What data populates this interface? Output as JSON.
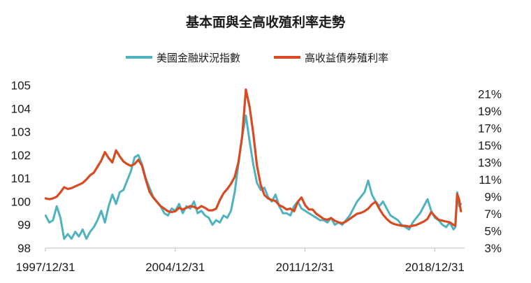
{
  "chart_data": {
    "type": "line",
    "title": "基本面與全高收殖利率走勢",
    "legend_placement": "top-center",
    "grid": false,
    "x_ticks": [
      "1997/12/31",
      "2004/12/31",
      "2011/12/31",
      "2018/12/31"
    ],
    "x_range": [
      1997.99,
      2020.6
    ],
    "y_left": {
      "min": 98,
      "max": 105,
      "ticks": [
        98,
        99,
        100,
        101,
        102,
        103,
        104,
        105
      ]
    },
    "y_right": {
      "min": 3,
      "max": 22,
      "ticks": [
        "3%",
        "5%",
        "7%",
        "9%",
        "11%",
        "13%",
        "15%",
        "17%",
        "19%",
        "21%"
      ]
    },
    "series": [
      {
        "name": "美國金融狀況指數",
        "color": "#4fb3bf",
        "axis": "left",
        "points": [
          [
            1998.0,
            99.4
          ],
          [
            1998.2,
            99.1
          ],
          [
            1998.4,
            99.2
          ],
          [
            1998.6,
            99.8
          ],
          [
            1998.8,
            99.3
          ],
          [
            1999.0,
            98.4
          ],
          [
            1999.2,
            98.6
          ],
          [
            1999.4,
            98.4
          ],
          [
            1999.6,
            98.7
          ],
          [
            1999.8,
            98.5
          ],
          [
            2000.0,
            98.8
          ],
          [
            2000.2,
            98.4
          ],
          [
            2000.4,
            98.7
          ],
          [
            2000.6,
            98.9
          ],
          [
            2000.8,
            99.2
          ],
          [
            2001.0,
            99.6
          ],
          [
            2001.2,
            99.1
          ],
          [
            2001.4,
            99.8
          ],
          [
            2001.6,
            100.3
          ],
          [
            2001.8,
            99.9
          ],
          [
            2002.0,
            100.4
          ],
          [
            2002.2,
            100.5
          ],
          [
            2002.4,
            100.9
          ],
          [
            2002.6,
            101.3
          ],
          [
            2002.8,
            101.9
          ],
          [
            2003.0,
            102.0
          ],
          [
            2003.2,
            101.6
          ],
          [
            2003.4,
            101.0
          ],
          [
            2003.6,
            100.6
          ],
          [
            2003.8,
            100.2
          ],
          [
            2004.0,
            100.0
          ],
          [
            2004.2,
            99.8
          ],
          [
            2004.4,
            99.5
          ],
          [
            2004.6,
            99.4
          ],
          [
            2004.8,
            99.7
          ],
          [
            2005.0,
            99.6
          ],
          [
            2005.2,
            99.9
          ],
          [
            2005.4,
            99.5
          ],
          [
            2005.6,
            99.8
          ],
          [
            2005.8,
            99.7
          ],
          [
            2006.0,
            100.0
          ],
          [
            2006.2,
            99.5
          ],
          [
            2006.4,
            99.6
          ],
          [
            2006.6,
            99.4
          ],
          [
            2006.8,
            99.3
          ],
          [
            2007.0,
            99.0
          ],
          [
            2007.2,
            99.2
          ],
          [
            2007.4,
            99.1
          ],
          [
            2007.6,
            99.4
          ],
          [
            2007.8,
            99.3
          ],
          [
            2008.0,
            99.6
          ],
          [
            2008.2,
            100.4
          ],
          [
            2008.4,
            101.6
          ],
          [
            2008.6,
            102.8
          ],
          [
            2008.8,
            103.7
          ],
          [
            2009.0,
            102.6
          ],
          [
            2009.2,
            101.6
          ],
          [
            2009.4,
            100.8
          ],
          [
            2009.6,
            100.5
          ],
          [
            2009.8,
            100.6
          ],
          [
            2010.0,
            100.2
          ],
          [
            2010.2,
            100.0
          ],
          [
            2010.4,
            100.3
          ],
          [
            2010.6,
            99.8
          ],
          [
            2010.8,
            99.5
          ],
          [
            2011.0,
            99.5
          ],
          [
            2011.2,
            99.4
          ],
          [
            2011.4,
            99.8
          ],
          [
            2011.6,
            100.0
          ],
          [
            2011.8,
            99.7
          ],
          [
            2012.0,
            99.6
          ],
          [
            2012.2,
            99.5
          ],
          [
            2012.4,
            99.4
          ],
          [
            2012.6,
            99.3
          ],
          [
            2012.8,
            99.2
          ],
          [
            2013.0,
            99.2
          ],
          [
            2013.2,
            99.1
          ],
          [
            2013.4,
            99.3
          ],
          [
            2013.6,
            99.0
          ],
          [
            2013.8,
            99.1
          ],
          [
            2014.0,
            99.0
          ],
          [
            2014.2,
            99.2
          ],
          [
            2014.4,
            99.4
          ],
          [
            2014.6,
            99.7
          ],
          [
            2014.8,
            100.0
          ],
          [
            2015.0,
            100.2
          ],
          [
            2015.2,
            100.4
          ],
          [
            2015.4,
            100.9
          ],
          [
            2015.6,
            100.3
          ],
          [
            2015.8,
            100.0
          ],
          [
            2016.0,
            99.8
          ],
          [
            2016.2,
            100.0
          ],
          [
            2016.4,
            99.7
          ],
          [
            2016.6,
            99.4
          ],
          [
            2016.8,
            99.3
          ],
          [
            2017.0,
            99.2
          ],
          [
            2017.2,
            99.0
          ],
          [
            2017.4,
            98.9
          ],
          [
            2017.6,
            98.8
          ],
          [
            2017.8,
            99.1
          ],
          [
            2018.0,
            99.3
          ],
          [
            2018.2,
            99.5
          ],
          [
            2018.4,
            99.8
          ],
          [
            2018.6,
            100.1
          ],
          [
            2018.8,
            99.6
          ],
          [
            2019.0,
            99.3
          ],
          [
            2019.2,
            99.2
          ],
          [
            2019.4,
            99.0
          ],
          [
            2019.6,
            98.9
          ],
          [
            2019.8,
            99.1
          ],
          [
            2020.0,
            98.8
          ],
          [
            2020.1,
            98.9
          ],
          [
            2020.2,
            100.4
          ],
          [
            2020.3,
            99.8
          ],
          [
            2020.4,
            99.9
          ]
        ]
      },
      {
        "name": "高收益債券殖利率",
        "color": "#d84a22",
        "axis": "right",
        "points": [
          [
            1998.0,
            8.8
          ],
          [
            1998.2,
            8.7
          ],
          [
            1998.4,
            8.8
          ],
          [
            1998.6,
            9.0
          ],
          [
            1998.8,
            9.5
          ],
          [
            1999.0,
            10.1
          ],
          [
            1999.2,
            9.9
          ],
          [
            1999.4,
            10.0
          ],
          [
            1999.6,
            10.2
          ],
          [
            1999.8,
            10.4
          ],
          [
            2000.0,
            10.6
          ],
          [
            2000.2,
            11.0
          ],
          [
            2000.4,
            11.5
          ],
          [
            2000.6,
            11.8
          ],
          [
            2000.8,
            12.5
          ],
          [
            2001.0,
            13.2
          ],
          [
            2001.2,
            14.2
          ],
          [
            2001.4,
            13.5
          ],
          [
            2001.6,
            13.0
          ],
          [
            2001.8,
            14.4
          ],
          [
            2002.0,
            13.7
          ],
          [
            2002.2,
            13.1
          ],
          [
            2002.4,
            12.8
          ],
          [
            2002.6,
            12.6
          ],
          [
            2002.8,
            12.8
          ],
          [
            2003.0,
            13.3
          ],
          [
            2003.2,
            12.6
          ],
          [
            2003.4,
            11.0
          ],
          [
            2003.6,
            9.6
          ],
          [
            2003.8,
            8.9
          ],
          [
            2004.0,
            8.4
          ],
          [
            2004.2,
            7.9
          ],
          [
            2004.4,
            7.6
          ],
          [
            2004.6,
            7.3
          ],
          [
            2004.8,
            7.2
          ],
          [
            2005.0,
            7.3
          ],
          [
            2005.2,
            7.7
          ],
          [
            2005.4,
            7.5
          ],
          [
            2005.6,
            7.7
          ],
          [
            2005.8,
            7.9
          ],
          [
            2006.0,
            7.8
          ],
          [
            2006.2,
            7.6
          ],
          [
            2006.4,
            7.9
          ],
          [
            2006.6,
            7.7
          ],
          [
            2006.8,
            7.4
          ],
          [
            2007.0,
            7.4
          ],
          [
            2007.2,
            7.6
          ],
          [
            2007.4,
            8.6
          ],
          [
            2007.6,
            9.4
          ],
          [
            2007.8,
            9.9
          ],
          [
            2008.0,
            10.5
          ],
          [
            2008.2,
            11.3
          ],
          [
            2008.4,
            13.0
          ],
          [
            2008.6,
            16.0
          ],
          [
            2008.8,
            21.5
          ],
          [
            2009.0,
            19.5
          ],
          [
            2009.2,
            16.4
          ],
          [
            2009.4,
            12.6
          ],
          [
            2009.6,
            10.4
          ],
          [
            2009.8,
            9.2
          ],
          [
            2010.0,
            8.8
          ],
          [
            2010.2,
            8.6
          ],
          [
            2010.4,
            8.5
          ],
          [
            2010.6,
            8.0
          ],
          [
            2010.8,
            7.8
          ],
          [
            2011.0,
            7.5
          ],
          [
            2011.2,
            7.6
          ],
          [
            2011.4,
            7.3
          ],
          [
            2011.6,
            8.4
          ],
          [
            2011.8,
            8.9
          ],
          [
            2012.0,
            8.0
          ],
          [
            2012.2,
            7.5
          ],
          [
            2012.4,
            7.5
          ],
          [
            2012.6,
            7.0
          ],
          [
            2012.8,
            6.7
          ],
          [
            2013.0,
            6.4
          ],
          [
            2013.2,
            6.3
          ],
          [
            2013.4,
            6.5
          ],
          [
            2013.6,
            6.2
          ],
          [
            2013.8,
            6.0
          ],
          [
            2014.0,
            5.9
          ],
          [
            2014.2,
            6.1
          ],
          [
            2014.4,
            6.4
          ],
          [
            2014.6,
            6.7
          ],
          [
            2014.8,
            7.0
          ],
          [
            2015.0,
            7.1
          ],
          [
            2015.2,
            7.3
          ],
          [
            2015.4,
            7.6
          ],
          [
            2015.6,
            8.1
          ],
          [
            2015.8,
            8.4
          ],
          [
            2016.0,
            7.6
          ],
          [
            2016.2,
            6.9
          ],
          [
            2016.4,
            6.4
          ],
          [
            2016.6,
            6.0
          ],
          [
            2016.8,
            5.8
          ],
          [
            2017.0,
            5.7
          ],
          [
            2017.2,
            5.6
          ],
          [
            2017.4,
            5.6
          ],
          [
            2017.6,
            5.5
          ],
          [
            2017.8,
            5.6
          ],
          [
            2018.0,
            5.7
          ],
          [
            2018.2,
            5.9
          ],
          [
            2018.4,
            6.1
          ],
          [
            2018.6,
            6.4
          ],
          [
            2018.8,
            7.2
          ],
          [
            2019.0,
            6.7
          ],
          [
            2019.2,
            6.3
          ],
          [
            2019.4,
            6.2
          ],
          [
            2019.6,
            6.1
          ],
          [
            2019.8,
            6.0
          ],
          [
            2020.0,
            5.7
          ],
          [
            2020.1,
            5.6
          ],
          [
            2020.2,
            9.3
          ],
          [
            2020.3,
            8.7
          ],
          [
            2020.4,
            7.3
          ]
        ]
      }
    ]
  }
}
